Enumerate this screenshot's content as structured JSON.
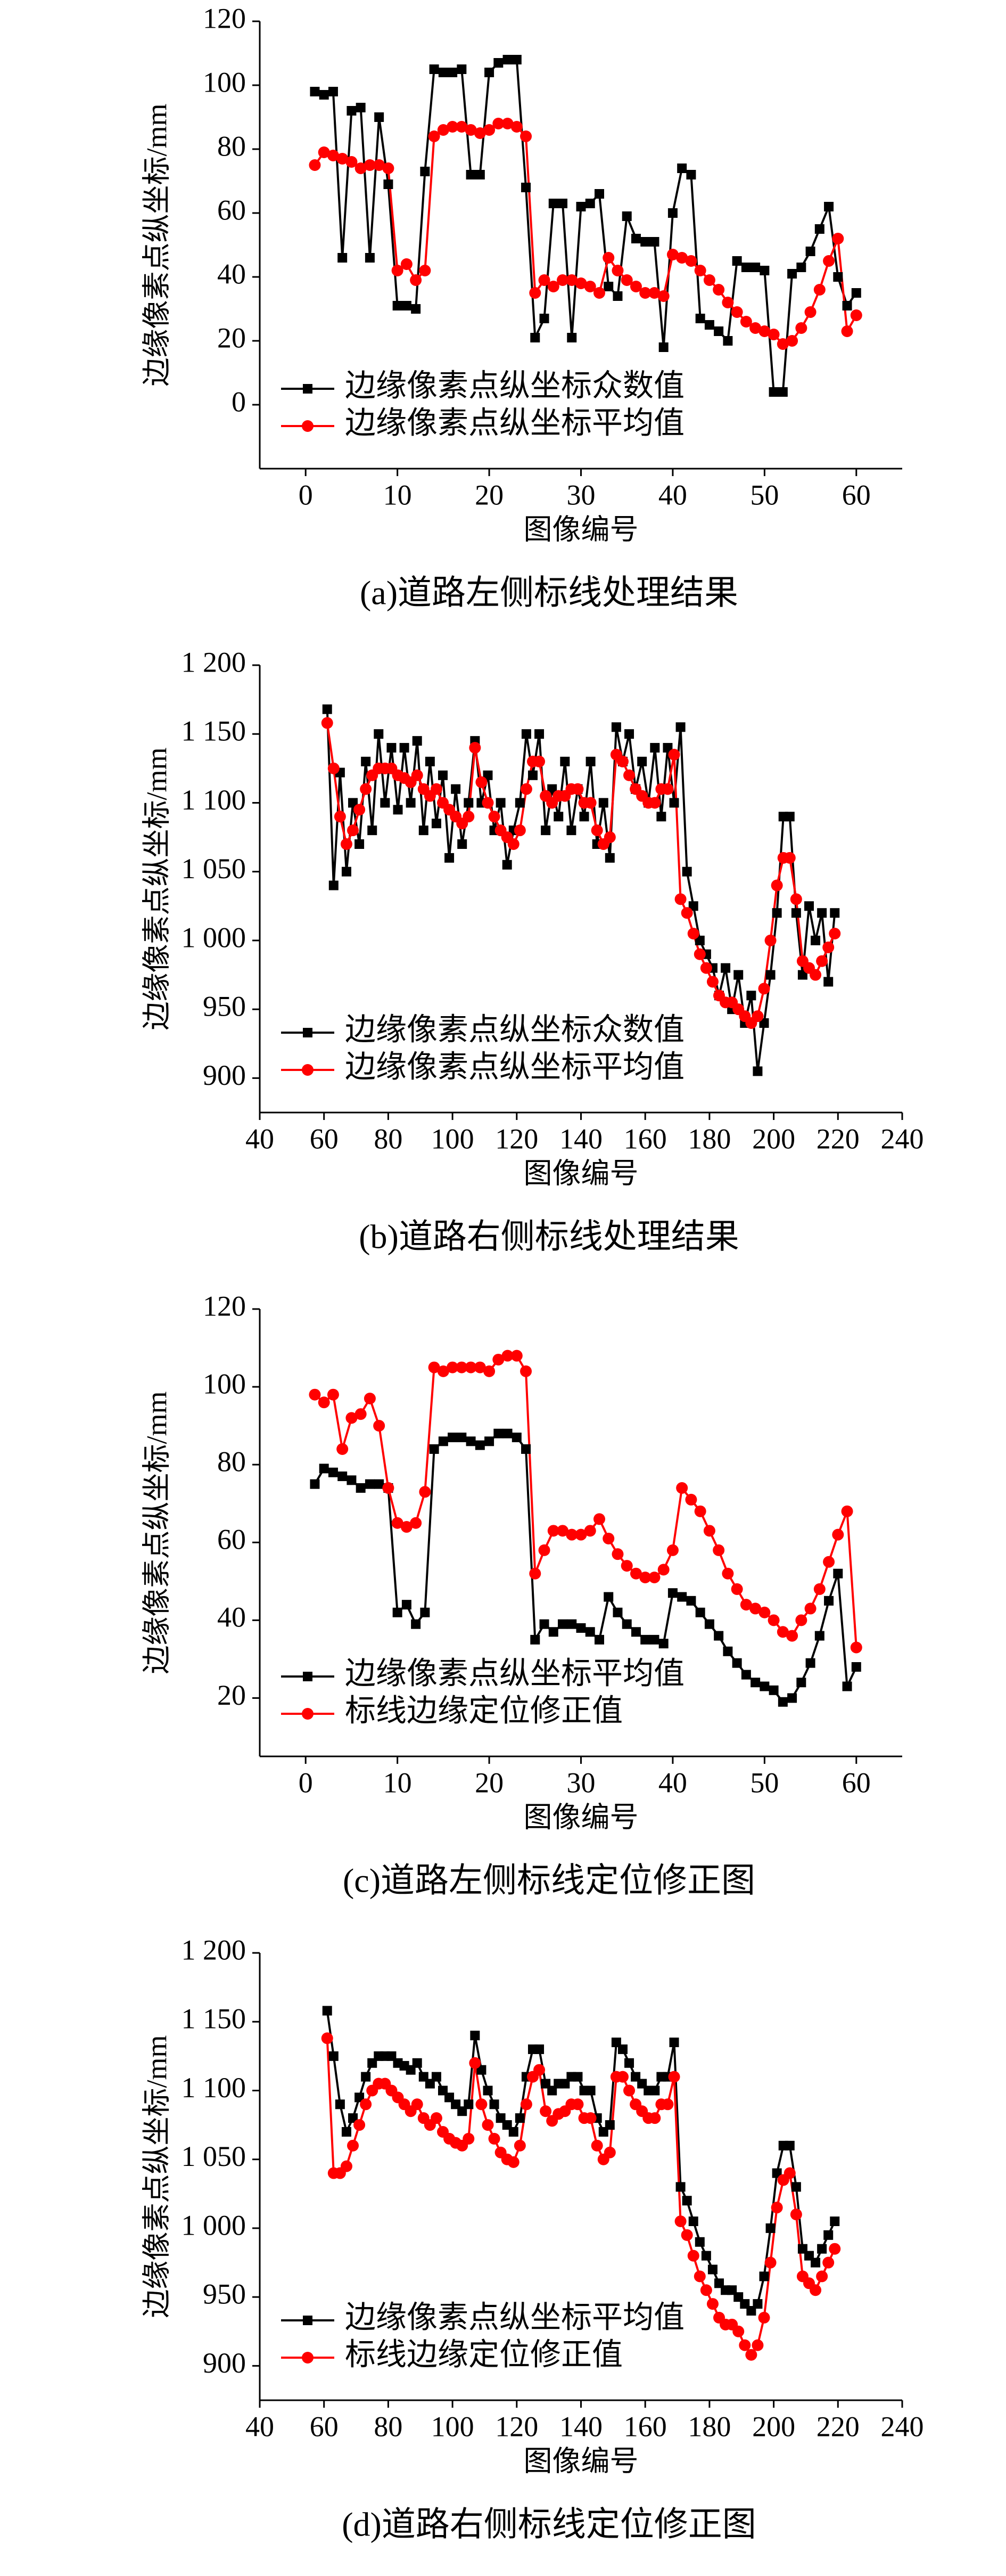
{
  "chart_data": [
    {
      "type": "line",
      "title": "(a)道路左侧标线处理结果",
      "xlabel": "图像编号",
      "ylabel": "边缘像素点纵坐标/mm",
      "xlim": [
        -5,
        65
      ],
      "ylim": [
        -20,
        120
      ],
      "xticks": [
        0,
        10,
        20,
        30,
        40,
        50,
        60
      ],
      "yticks": [
        0,
        20,
        40,
        60,
        80,
        100,
        120
      ],
      "legend": "lower left",
      "x": [
        1,
        2,
        3,
        4,
        5,
        6,
        7,
        8,
        9,
        10,
        11,
        12,
        13,
        14,
        15,
        16,
        17,
        18,
        19,
        20,
        21,
        22,
        23,
        24,
        25,
        26,
        27,
        28,
        29,
        30,
        31,
        32,
        33,
        34,
        35,
        36,
        37,
        38,
        39,
        40,
        41,
        42,
        43,
        44,
        45,
        46,
        47,
        48,
        49,
        50,
        51,
        52,
        53,
        54,
        55,
        56,
        57,
        58,
        59,
        60
      ],
      "series": [
        {
          "name": "边缘像素点纵坐标众数值",
          "color": "#000000",
          "marker": "square",
          "values": [
            98,
            97,
            98,
            46,
            92,
            93,
            46,
            90,
            69,
            31,
            31,
            30,
            73,
            105,
            104,
            104,
            105,
            72,
            72,
            104,
            107,
            108,
            108,
            68,
            21,
            27,
            63,
            63,
            21,
            62,
            63,
            66,
            37,
            34,
            59,
            52,
            51,
            51,
            18,
            60,
            74,
            72,
            27,
            25,
            23,
            20,
            45,
            43,
            43,
            42,
            4,
            4,
            41,
            43,
            48,
            55,
            62,
            40,
            31,
            35
          ]
        },
        {
          "name": "边缘像素点纵坐标平均值",
          "color": "#ff0000",
          "marker": "circle",
          "values": [
            75,
            79,
            78,
            77,
            76,
            74,
            75,
            75,
            74,
            42,
            44,
            39,
            42,
            84,
            86,
            87,
            87,
            86,
            85,
            86,
            88,
            88,
            87,
            84,
            35,
            39,
            37,
            39,
            39,
            38,
            37,
            35,
            46,
            42,
            39,
            37,
            35,
            35,
            34,
            47,
            46,
            45,
            42,
            39,
            36,
            32,
            29,
            26,
            24,
            23,
            22,
            19,
            20,
            24,
            29,
            36,
            45,
            52,
            23,
            28
          ]
        }
      ]
    },
    {
      "type": "line",
      "title": "(b)道路右侧标线处理结果",
      "xlabel": "图像编号",
      "ylabel": "边缘像素点纵坐标/mm",
      "xlim": [
        40,
        240
      ],
      "ylim": [
        875,
        1200
      ],
      "xticks": [
        40,
        60,
        80,
        100,
        120,
        140,
        160,
        180,
        200,
        220,
        240
      ],
      "yticks": [
        900,
        950,
        {
          "value": 1000,
          "label": "1 000"
        },
        {
          "value": 1050,
          "label": "1 050"
        },
        {
          "value": 1100,
          "label": "1 100"
        },
        {
          "value": 1150,
          "label": "1 150"
        },
        {
          "value": 1200,
          "label": "1 200"
        }
      ],
      "legend": "lower left",
      "x": [
        61,
        63,
        65,
        67,
        69,
        71,
        73,
        75,
        77,
        79,
        81,
        83,
        85,
        87,
        89,
        91,
        93,
        95,
        97,
        99,
        101,
        103,
        105,
        107,
        109,
        111,
        113,
        115,
        117,
        119,
        121,
        123,
        125,
        127,
        129,
        131,
        133,
        135,
        137,
        139,
        141,
        143,
        145,
        147,
        149,
        151,
        153,
        155,
        157,
        159,
        161,
        163,
        165,
        167,
        169,
        171,
        173,
        175,
        177,
        179,
        181,
        183,
        185,
        187,
        189,
        191,
        193,
        195,
        197,
        199,
        201,
        203,
        205,
        207,
        209,
        211,
        213,
        215,
        217,
        219
      ],
      "series": [
        {
          "name": "边缘像素点纵坐标众数值",
          "color": "#000000",
          "marker": "square",
          "values": [
            1168,
            1040,
            1122,
            1050,
            1100,
            1070,
            1130,
            1080,
            1150,
            1100,
            1140,
            1095,
            1140,
            1100,
            1145,
            1080,
            1130,
            1085,
            1120,
            1060,
            1110,
            1070,
            1100,
            1145,
            1100,
            1120,
            1080,
            1100,
            1055,
            1080,
            1100,
            1150,
            1120,
            1150,
            1080,
            1110,
            1090,
            1130,
            1080,
            1110,
            1090,
            1130,
            1070,
            1100,
            1060,
            1155,
            1130,
            1150,
            1110,
            1130,
            1100,
            1140,
            1090,
            1140,
            1100,
            1155,
            1050,
            1025,
            1000,
            990,
            980,
            960,
            980,
            950,
            975,
            940,
            960,
            905,
            940,
            975,
            1020,
            1090,
            1090,
            1020,
            975,
            1025,
            1000,
            1020,
            970,
            1020
          ]
        },
        {
          "name": "边缘像素点纵坐标平均值",
          "color": "#ff0000",
          "marker": "circle",
          "values": [
            1158,
            1125,
            1090,
            1070,
            1080,
            1095,
            1110,
            1120,
            1125,
            1125,
            1125,
            1120,
            1118,
            1115,
            1120,
            1110,
            1105,
            1110,
            1100,
            1095,
            1090,
            1085,
            1090,
            1140,
            1115,
            1100,
            1090,
            1080,
            1075,
            1070,
            1080,
            1110,
            1130,
            1130,
            1105,
            1100,
            1105,
            1105,
            1110,
            1110,
            1100,
            1100,
            1080,
            1070,
            1075,
            1135,
            1130,
            1120,
            1110,
            1105,
            1100,
            1100,
            1110,
            1110,
            1135,
            1030,
            1020,
            1005,
            990,
            980,
            970,
            960,
            955,
            955,
            950,
            945,
            940,
            945,
            965,
            1000,
            1040,
            1060,
            1060,
            1030,
            985,
            980,
            975,
            985,
            995,
            1005
          ]
        }
      ]
    },
    {
      "type": "line",
      "title": "(c)道路左侧标线定位修正图",
      "xlabel": "图像编号",
      "ylabel": "边缘像素点纵坐标/mm",
      "xlim": [
        -5,
        65
      ],
      "ylim": [
        5,
        120
      ],
      "xticks": [
        0,
        10,
        20,
        30,
        40,
        50,
        60
      ],
      "yticks": [
        20,
        40,
        60,
        80,
        100,
        120
      ],
      "legend": "lower left",
      "x": [
        1,
        2,
        3,
        4,
        5,
        6,
        7,
        8,
        9,
        10,
        11,
        12,
        13,
        14,
        15,
        16,
        17,
        18,
        19,
        20,
        21,
        22,
        23,
        24,
        25,
        26,
        27,
        28,
        29,
        30,
        31,
        32,
        33,
        34,
        35,
        36,
        37,
        38,
        39,
        40,
        41,
        42,
        43,
        44,
        45,
        46,
        47,
        48,
        49,
        50,
        51,
        52,
        53,
        54,
        55,
        56,
        57,
        58,
        59,
        60
      ],
      "series": [
        {
          "name": "边缘像素点纵坐标平均值",
          "color": "#000000",
          "marker": "square",
          "values": [
            75,
            79,
            78,
            77,
            76,
            74,
            75,
            75,
            74,
            42,
            44,
            39,
            42,
            84,
            86,
            87,
            87,
            86,
            85,
            86,
            88,
            88,
            87,
            84,
            35,
            39,
            37,
            39,
            39,
            38,
            37,
            35,
            46,
            42,
            39,
            37,
            35,
            35,
            34,
            47,
            46,
            45,
            42,
            39,
            36,
            32,
            29,
            26,
            24,
            23,
            22,
            19,
            20,
            24,
            29,
            36,
            45,
            52,
            23,
            28
          ]
        },
        {
          "name": "标线边缘定位修正值",
          "color": "#ff0000",
          "marker": "circle",
          "values": [
            98,
            96,
            98,
            84,
            92,
            93,
            97,
            90,
            74,
            65,
            64,
            65,
            73,
            105,
            104,
            105,
            105,
            105,
            105,
            104,
            107,
            108,
            108,
            104,
            52,
            58,
            63,
            63,
            62,
            62,
            63,
            66,
            61,
            57,
            54,
            52,
            51,
            51,
            53,
            58,
            74,
            71,
            68,
            63,
            58,
            52,
            48,
            44,
            43,
            42,
            40,
            37,
            36,
            40,
            43,
            48,
            55,
            62,
            68,
            33
          ]
        }
      ]
    },
    {
      "type": "line",
      "title": "(d)道路右侧标线定位修正图",
      "xlabel": "图像编号",
      "ylabel": "边缘像素点纵坐标/mm",
      "xlim": [
        40,
        240
      ],
      "ylim": [
        875,
        1200
      ],
      "xticks": [
        40,
        60,
        80,
        100,
        120,
        140,
        160,
        180,
        200,
        220,
        240
      ],
      "yticks": [
        900,
        950,
        {
          "value": 1000,
          "label": "1 000"
        },
        {
          "value": 1050,
          "label": "1 050"
        },
        {
          "value": 1100,
          "label": "1 100"
        },
        {
          "value": 1150,
          "label": "1 150"
        },
        {
          "value": 1200,
          "label": "1 200"
        }
      ],
      "legend": "lower left",
      "x": [
        61,
        63,
        65,
        67,
        69,
        71,
        73,
        75,
        77,
        79,
        81,
        83,
        85,
        87,
        89,
        91,
        93,
        95,
        97,
        99,
        101,
        103,
        105,
        107,
        109,
        111,
        113,
        115,
        117,
        119,
        121,
        123,
        125,
        127,
        129,
        131,
        133,
        135,
        137,
        139,
        141,
        143,
        145,
        147,
        149,
        151,
        153,
        155,
        157,
        159,
        161,
        163,
        165,
        167,
        169,
        171,
        173,
        175,
        177,
        179,
        181,
        183,
        185,
        187,
        189,
        191,
        193,
        195,
        197,
        199,
        201,
        203,
        205,
        207,
        209,
        211,
        213,
        215,
        217,
        219
      ],
      "series": [
        {
          "name": "边缘像素点纵坐标平均值",
          "color": "#000000",
          "marker": "square",
          "values": [
            1158,
            1125,
            1090,
            1070,
            1080,
            1095,
            1110,
            1120,
            1125,
            1125,
            1125,
            1120,
            1118,
            1115,
            1120,
            1110,
            1105,
            1110,
            1100,
            1095,
            1090,
            1085,
            1090,
            1140,
            1115,
            1100,
            1090,
            1080,
            1075,
            1070,
            1080,
            1110,
            1130,
            1130,
            1105,
            1100,
            1105,
            1105,
            1110,
            1110,
            1100,
            1100,
            1080,
            1070,
            1075,
            1135,
            1130,
            1120,
            1110,
            1105,
            1100,
            1100,
            1110,
            1110,
            1135,
            1030,
            1020,
            1005,
            990,
            980,
            970,
            960,
            955,
            955,
            950,
            945,
            940,
            945,
            965,
            1000,
            1040,
            1060,
            1060,
            1030,
            985,
            980,
            975,
            985,
            995,
            1005
          ]
        },
        {
          "name": "标线边缘定位修正值",
          "color": "#ff0000",
          "marker": "circle",
          "values": [
            1138,
            1040,
            1040,
            1045,
            1060,
            1075,
            1090,
            1100,
            1105,
            1105,
            1100,
            1095,
            1090,
            1085,
            1090,
            1080,
            1075,
            1080,
            1070,
            1065,
            1062,
            1060,
            1065,
            1120,
            1090,
            1075,
            1065,
            1055,
            1050,
            1048,
            1060,
            1090,
            1110,
            1115,
            1085,
            1078,
            1083,
            1085,
            1090,
            1090,
            1080,
            1080,
            1060,
            1050,
            1055,
            1110,
            1110,
            1100,
            1090,
            1085,
            1080,
            1080,
            1090,
            1090,
            1110,
            1005,
            995,
            980,
            965,
            955,
            945,
            935,
            930,
            930,
            925,
            915,
            908,
            915,
            935,
            975,
            1015,
            1035,
            1040,
            1010,
            965,
            960,
            955,
            965,
            975,
            985
          ]
        }
      ]
    }
  ]
}
